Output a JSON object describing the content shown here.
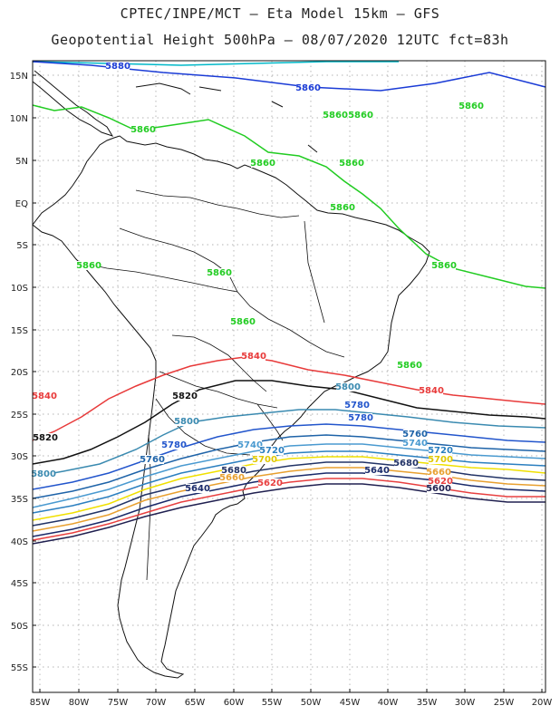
{
  "title_line1": "CPTEC/INPE/MCT –  Eta Model 15km – GFS",
  "title_line2": "Geopotential Height 500hPa – 08/07/2020 12UTC fct=83h",
  "lat_ticks": [
    "15N",
    "10N",
    "5N",
    "EQ",
    "5S",
    "10S",
    "15S",
    "20S",
    "25S",
    "30S",
    "35S",
    "40S",
    "45S",
    "50S",
    "55S"
  ],
  "lon_ticks": [
    "85W",
    "80W",
    "75W",
    "70W",
    "65W",
    "60W",
    "55W",
    "50W",
    "45W",
    "40W",
    "35W",
    "30W",
    "25W",
    "20W"
  ],
  "contours": [
    {
      "value": "5880",
      "color": "#00b8c8"
    },
    {
      "value": "5860",
      "color": "#1a3bd6"
    },
    {
      "value": "5860",
      "color": "#22cc22"
    },
    {
      "value": "5840",
      "color": "#e83a3a"
    },
    {
      "value": "5820",
      "color": "#111111"
    },
    {
      "value": "5800",
      "color": "#3a8ab0"
    },
    {
      "value": "5780",
      "color": "#2255cc"
    },
    {
      "value": "5760",
      "color": "#1e63a8"
    },
    {
      "value": "5740",
      "color": "#4a9ad0"
    },
    {
      "value": "5720",
      "color": "#2b7fc0"
    },
    {
      "value": "5700",
      "color": "#f0e000"
    },
    {
      "value": "5680",
      "color": "#223366"
    },
    {
      "value": "5660",
      "color": "#e8a030"
    },
    {
      "value": "5640",
      "color": "#1a2a6a"
    },
    {
      "value": "5620",
      "color": "#e84040"
    },
    {
      "value": "5600",
      "color": "#202050"
    }
  ],
  "labels": [
    {
      "text": "5880",
      "color": "#1a3bd6"
    },
    {
      "text": "5860",
      "color": "#1a3bd6"
    },
    {
      "text": "5860",
      "color": "#22cc22"
    },
    {
      "text": "5860",
      "color": "#22cc22"
    },
    {
      "text": "5860",
      "color": "#22cc22"
    },
    {
      "text": "5860",
      "color": "#22cc22"
    },
    {
      "text": "5860",
      "color": "#22cc22"
    },
    {
      "text": "5860",
      "color": "#22cc22"
    },
    {
      "text": "5860",
      "color": "#22cc22"
    },
    {
      "text": "5860",
      "color": "#22cc22"
    },
    {
      "text": "5860",
      "color": "#22cc22"
    },
    {
      "text": "5860",
      "color": "#22cc22"
    },
    {
      "text": "5860",
      "color": "#22cc22"
    },
    {
      "text": "5860",
      "color": "#22cc22"
    },
    {
      "text": "5840",
      "color": "#e83a3a"
    },
    {
      "text": "5840",
      "color": "#e83a3a"
    },
    {
      "text": "5840",
      "color": "#e83a3a"
    },
    {
      "text": "5820",
      "color": "#111111"
    },
    {
      "text": "5820",
      "color": "#111111"
    },
    {
      "text": "5800",
      "color": "#3a8ab0"
    },
    {
      "text": "5800",
      "color": "#3a8ab0"
    },
    {
      "text": "5800",
      "color": "#3a8ab0"
    },
    {
      "text": "5780",
      "color": "#2255cc"
    },
    {
      "text": "5780",
      "color": "#2255cc"
    },
    {
      "text": "5780",
      "color": "#2255cc"
    },
    {
      "text": "5760",
      "color": "#1e63a8"
    },
    {
      "text": "5760",
      "color": "#1e63a8"
    },
    {
      "text": "5740",
      "color": "#4a9ad0"
    },
    {
      "text": "5740",
      "color": "#4a9ad0"
    },
    {
      "text": "5720",
      "color": "#2b7fc0"
    },
    {
      "text": "5720",
      "color": "#2b7fc0"
    },
    {
      "text": "5700",
      "color": "#e0c800"
    },
    {
      "text": "5700",
      "color": "#e0c800"
    },
    {
      "text": "5680",
      "color": "#223366"
    },
    {
      "text": "5680",
      "color": "#223366"
    },
    {
      "text": "5660",
      "color": "#e8a030"
    },
    {
      "text": "5660",
      "color": "#e8a030"
    },
    {
      "text": "5640",
      "color": "#1a2a6a"
    },
    {
      "text": "5640",
      "color": "#1a2a6a"
    },
    {
      "text": "5620",
      "color": "#e84040"
    },
    {
      "text": "5620",
      "color": "#e84040"
    },
    {
      "text": "5600",
      "color": "#202050"
    }
  ]
}
